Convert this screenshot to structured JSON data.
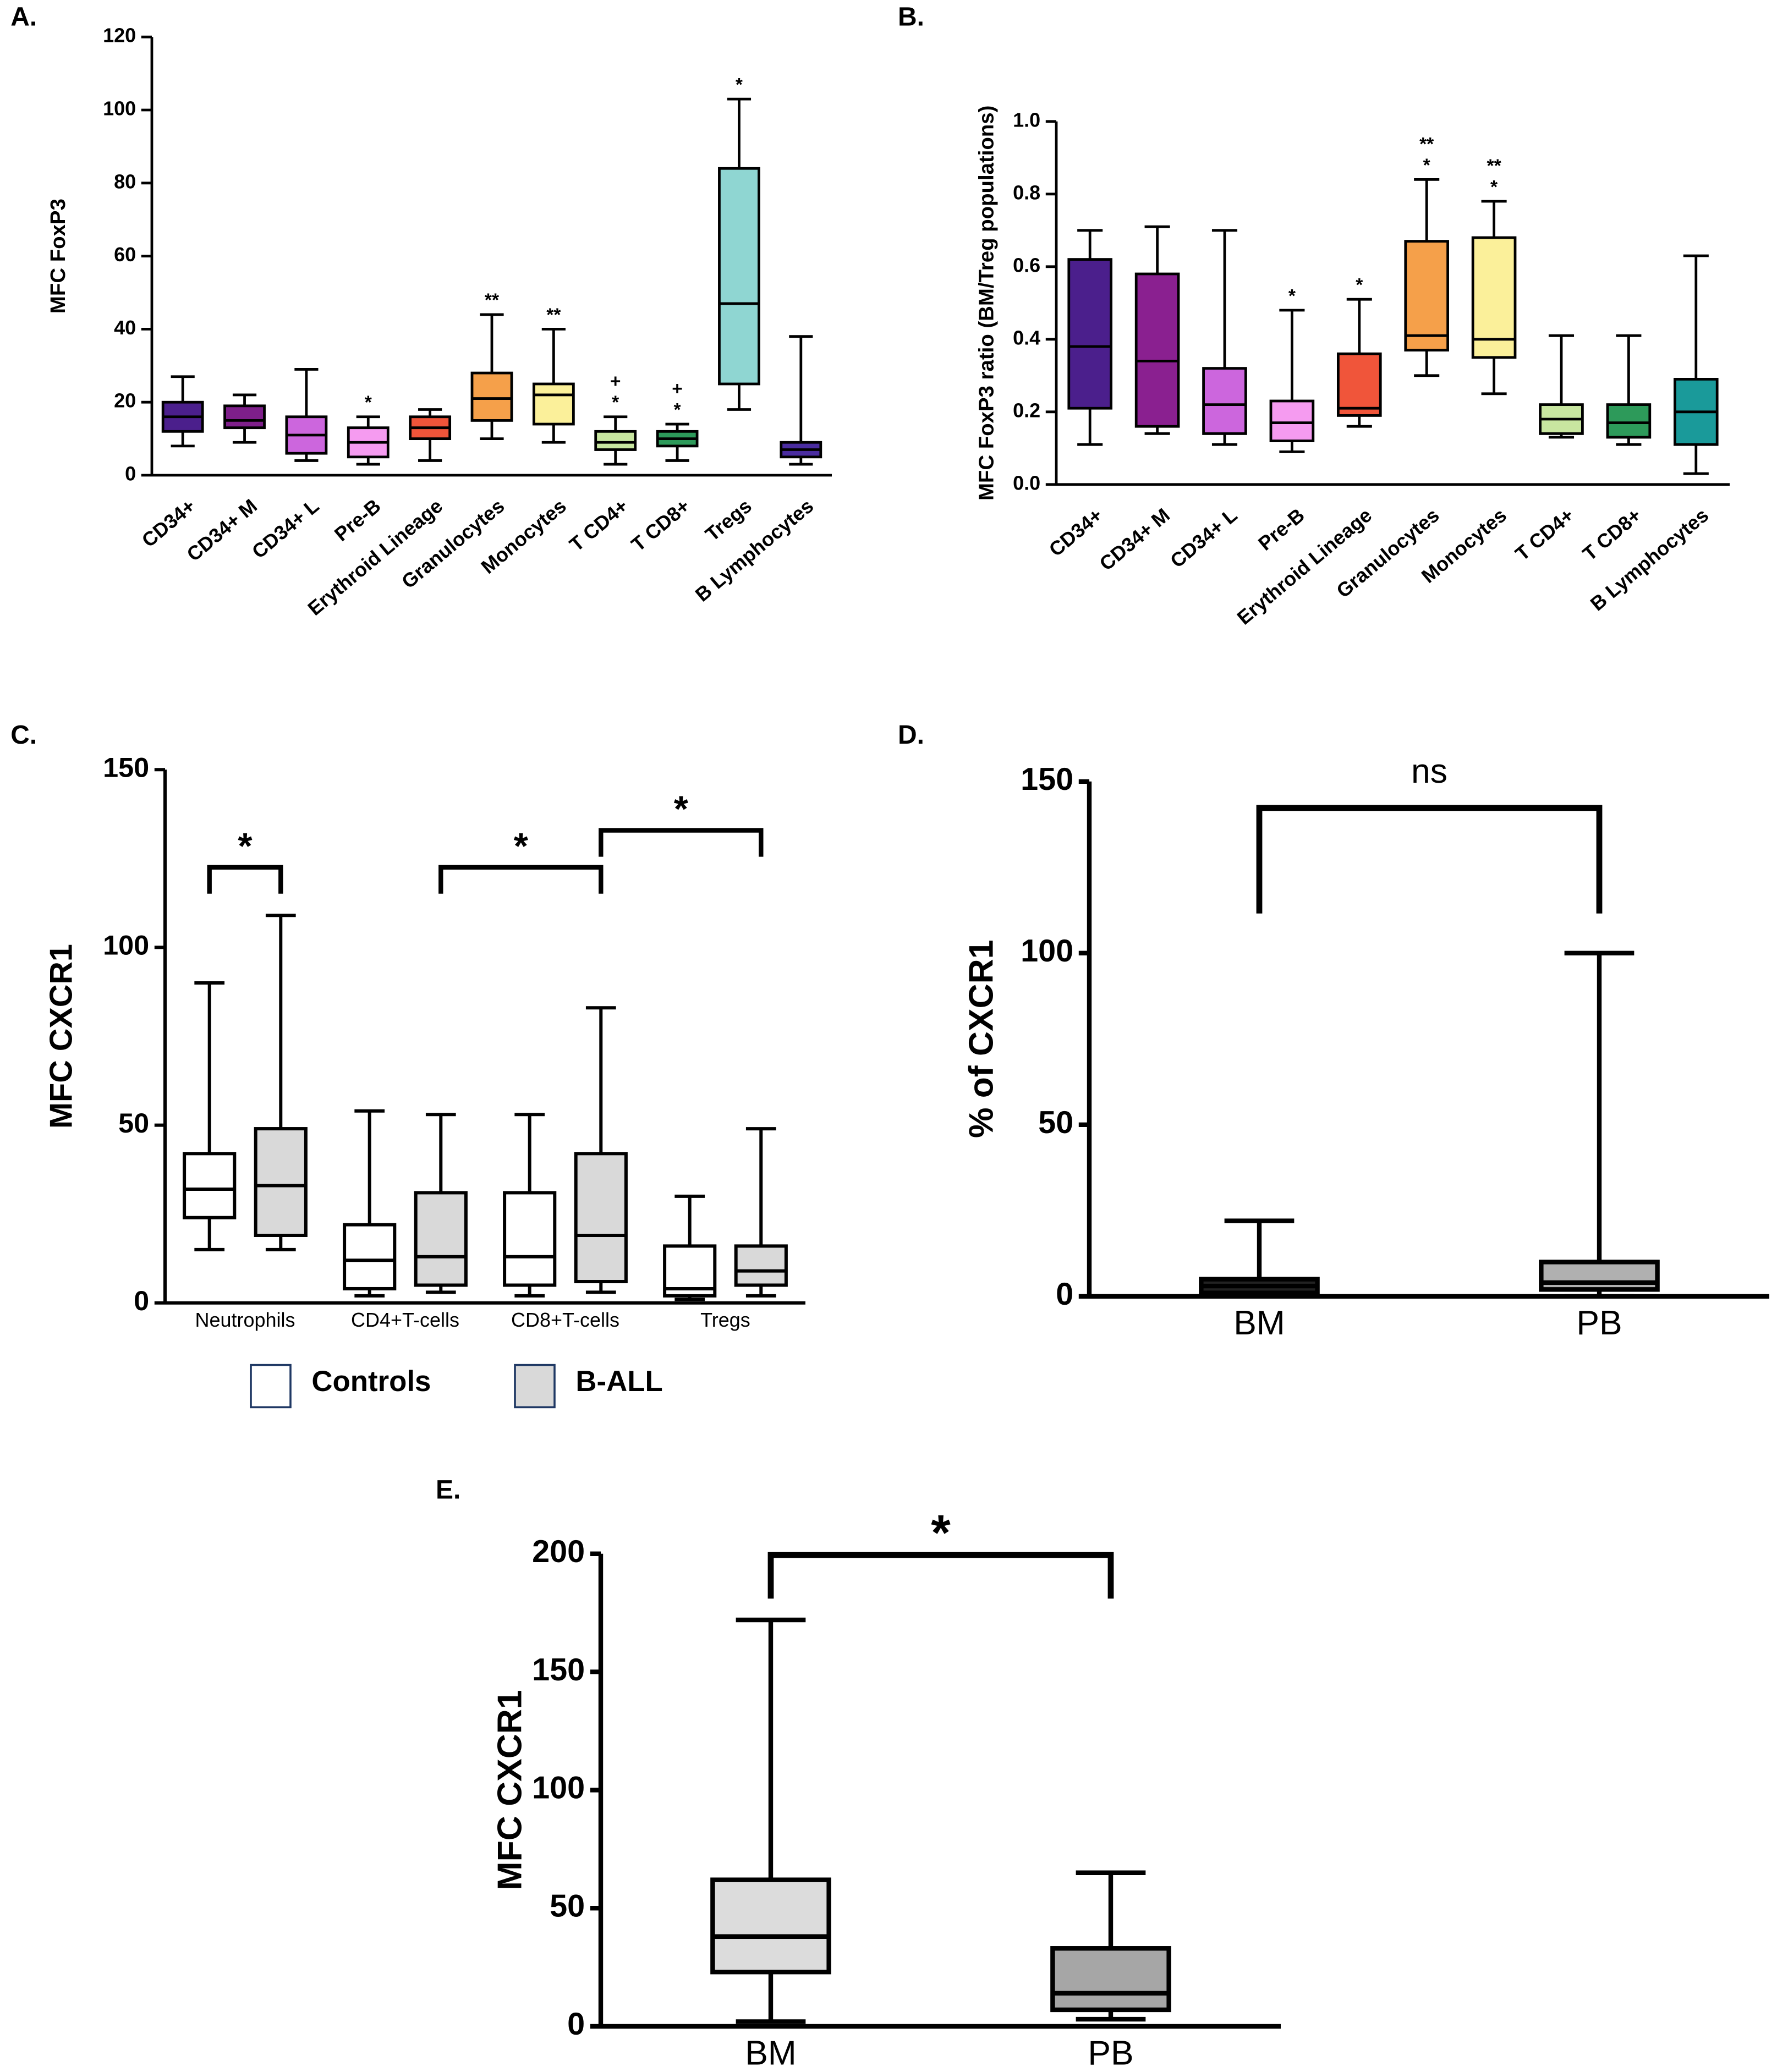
{
  "chart_data": [
    {
      "type": "box",
      "panel": "A.",
      "ylabel": "MFC FoxP3",
      "categories": [
        "CD34+",
        "CD34+ M",
        "CD34+ L",
        "Pre-B",
        "Erythroid Lineage",
        "Granulocytes",
        "Monocytes",
        "T CD4+",
        "T CD8+",
        "Tregs",
        "B Lymphocytes"
      ],
      "series": [
        {
          "colors": [
            "#4b1f8c",
            "#7e1f8a",
            "#cc66dd",
            "#f59bf0",
            "#f0553a",
            "#f5a04a",
            "#fbf09a",
            "#c8e6a0",
            "#2d9a5a",
            "#8fd6d2",
            "#4a2ca0"
          ],
          "min": [
            8,
            9,
            4,
            3,
            4,
            10,
            9,
            3,
            4,
            18,
            3
          ],
          "q1": [
            12,
            13,
            6,
            5,
            10,
            15,
            14,
            7,
            8,
            25,
            5
          ],
          "median": [
            16,
            15,
            11,
            9,
            13,
            21,
            22,
            9,
            10,
            47,
            7
          ],
          "q3": [
            20,
            19,
            16,
            13,
            16,
            28,
            25,
            12,
            12,
            84,
            9
          ],
          "max": [
            27,
            22,
            29,
            16,
            18,
            44,
            40,
            16,
            14,
            103,
            38
          ]
        }
      ],
      "annotations": [
        null,
        null,
        null,
        [
          "*"
        ],
        null,
        [
          "**"
        ],
        [
          "**"
        ],
        [
          "+",
          "*"
        ],
        [
          "+",
          "*"
        ],
        [
          "*"
        ],
        null
      ],
      "ylim": [
        0,
        120
      ],
      "yticks": [
        0,
        20,
        40,
        60,
        80,
        100,
        120
      ]
    },
    {
      "type": "box",
      "panel": "B.",
      "ylabel": "MFC FoxP3 ratio (BM/Treg populations)",
      "categories": [
        "CD34+",
        "CD34+ M",
        "CD34+ L",
        "Pre-B",
        "Erythroid Lineage",
        "Granulocytes",
        "Monocytes",
        "T CD4+",
        "T CD8+",
        "B Lymphocytes"
      ],
      "series": [
        {
          "colors": [
            "#4b1f8c",
            "#8a2090",
            "#cc66dd",
            "#f59bf0",
            "#f0553a",
            "#f5a04a",
            "#fbf09a",
            "#c8e6a0",
            "#2d9a5a",
            "#1a9a9a"
          ],
          "min": [
            0.11,
            0.14,
            0.11,
            0.09,
            0.16,
            0.3,
            0.25,
            0.13,
            0.11,
            0.03
          ],
          "q1": [
            0.21,
            0.16,
            0.14,
            0.12,
            0.19,
            0.37,
            0.35,
            0.14,
            0.13,
            0.11
          ],
          "median": [
            0.38,
            0.34,
            0.22,
            0.17,
            0.21,
            0.41,
            0.4,
            0.18,
            0.17,
            0.2
          ],
          "q3": [
            0.62,
            0.58,
            0.32,
            0.23,
            0.36,
            0.67,
            0.68,
            0.22,
            0.22,
            0.29
          ],
          "max": [
            0.7,
            0.71,
            0.7,
            0.48,
            0.51,
            0.84,
            0.78,
            0.41,
            0.41,
            0.63
          ]
        }
      ],
      "annotations": [
        null,
        null,
        null,
        [
          "*"
        ],
        [
          "*"
        ],
        [
          "**",
          "*"
        ],
        [
          "**",
          "*"
        ],
        null,
        null,
        null
      ],
      "ylim": [
        0,
        1
      ],
      "yticks": [
        {
          "value": 0,
          "label": "0.0"
        },
        0.2,
        0.4,
        0.6,
        0.8,
        {
          "value": 1,
          "label": "1.0"
        }
      ]
    },
    {
      "type": "box",
      "panel": "C.",
      "ylabel": "MFC CXCR1",
      "categories": [
        "Neutrophils",
        "CD4+T-cells",
        "CD8+T-cells",
        "Tregs"
      ],
      "series": [
        {
          "name": "Controls",
          "color": "#ffffff",
          "min": [
            15,
            2,
            2,
            1
          ],
          "q1": [
            24,
            4,
            5,
            2
          ],
          "median": [
            32,
            12,
            13,
            4
          ],
          "q3": [
            42,
            22,
            31,
            16
          ],
          "max": [
            90,
            54,
            53,
            30
          ]
        },
        {
          "name": "B-ALL",
          "color": "#d9d9d9",
          "min": [
            15,
            3,
            3,
            2
          ],
          "q1": [
            19,
            5,
            6,
            5
          ],
          "median": [
            33,
            13,
            19,
            9
          ],
          "q3": [
            49,
            31,
            42,
            16
          ],
          "max": [
            109,
            53,
            83,
            49
          ]
        }
      ],
      "brackets": [
        {
          "from": [
            0,
            0
          ],
          "to": [
            0,
            1
          ],
          "label": "*"
        },
        {
          "from": [
            1,
            1
          ],
          "to": [
            2,
            1
          ],
          "label": "*"
        },
        {
          "from": [
            2,
            1
          ],
          "to": [
            3,
            1
          ],
          "label": "*"
        }
      ],
      "ylim": [
        0,
        150
      ],
      "yticks": [
        0,
        50,
        100,
        150
      ]
    },
    {
      "type": "box",
      "panel": "D.",
      "ylabel": "% of CXCR1",
      "categories": [
        "BM",
        "PB"
      ],
      "series": [
        {
          "colors": [
            "#222222",
            "#b0b0b0"
          ],
          "min": [
            0,
            0
          ],
          "q1": [
            1,
            2
          ],
          "median": [
            3,
            4
          ],
          "q3": [
            5,
            10
          ],
          "max": [
            22,
            100
          ]
        }
      ],
      "brackets": [
        {
          "from": [
            0,
            0
          ],
          "to": [
            1,
            0
          ],
          "label": "ns"
        }
      ],
      "ylim": [
        0,
        150
      ],
      "yticks": [
        0,
        50,
        100,
        150
      ]
    },
    {
      "type": "box",
      "panel": "E.",
      "ylabel": "MFC CXCR1",
      "categories": [
        "BM",
        "PB"
      ],
      "series": [
        {
          "colors": [
            "#dcdcdc",
            "#a6a6a6"
          ],
          "min": [
            2,
            3
          ],
          "q1": [
            23,
            7
          ],
          "median": [
            38,
            14
          ],
          "q3": [
            62,
            33
          ],
          "max": [
            172,
            65
          ]
        }
      ],
      "brackets": [
        {
          "from": [
            0,
            0
          ],
          "to": [
            1,
            0
          ],
          "label": "*"
        }
      ],
      "ylim": [
        0,
        200
      ],
      "yticks": [
        0,
        50,
        100,
        150,
        200
      ]
    }
  ]
}
